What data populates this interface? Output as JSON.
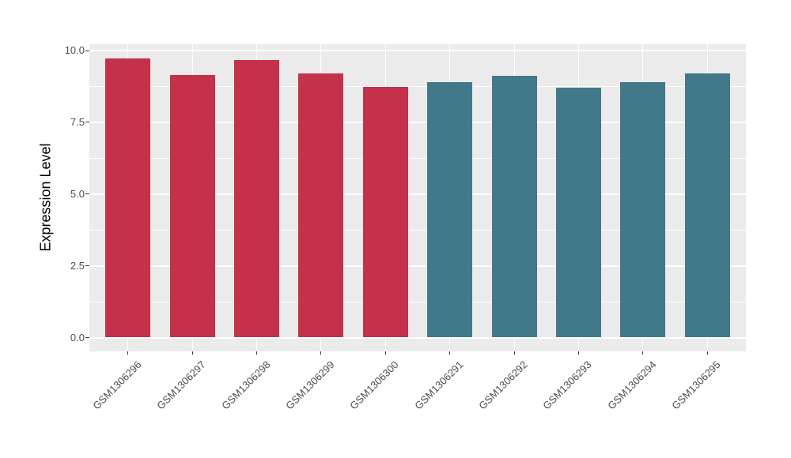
{
  "figure": {
    "background_color": "#FFFFFF",
    "panel_background_color": "#EBEBEB",
    "gridline_color": "#FFFFFF",
    "tick_text_color": "#4D4D4D",
    "axis_title_color": "#000000"
  },
  "chart_data": {
    "type": "bar",
    "title": "",
    "xlabel": "",
    "ylabel": "Expression Level",
    "categories": [
      "GSM1306296",
      "GSM1306297",
      "GSM1306298",
      "GSM1306299",
      "GSM1306300",
      "GSM1306291",
      "GSM1306292",
      "GSM1306293",
      "GSM1306294",
      "GSM1306295"
    ],
    "values": [
      9.72,
      9.16,
      9.68,
      9.2,
      8.74,
      8.9,
      9.13,
      8.71,
      8.9,
      9.2
    ],
    "bar_colors": [
      "#C4314B",
      "#C4314B",
      "#C4314B",
      "#C4314B",
      "#C4314B",
      "#41788A",
      "#41788A",
      "#41788A",
      "#41788A",
      "#41788A"
    ],
    "groups": [
      {
        "name": "group-crimson",
        "color": "#C4314B",
        "categories": [
          "GSM1306296",
          "GSM1306297",
          "GSM1306298",
          "GSM1306299",
          "GSM1306300"
        ]
      },
      {
        "name": "group-teal",
        "color": "#41788A",
        "categories": [
          "GSM1306291",
          "GSM1306292",
          "GSM1306293",
          "GSM1306294",
          "GSM1306295"
        ]
      }
    ],
    "ylim": [
      0,
      10
    ],
    "yticks": [
      0.0,
      2.5,
      5.0,
      7.5,
      10.0
    ],
    "ytick_labels": [
      "0.0",
      "2.5",
      "5.0",
      "7.5",
      "10.0"
    ],
    "minor_gridlines": [
      1.25,
      3.75,
      6.25,
      8.75
    ],
    "grid": "on",
    "legend": "none",
    "x_tick_rotation_deg": 45,
    "bar_width_ratio": 0.7
  }
}
